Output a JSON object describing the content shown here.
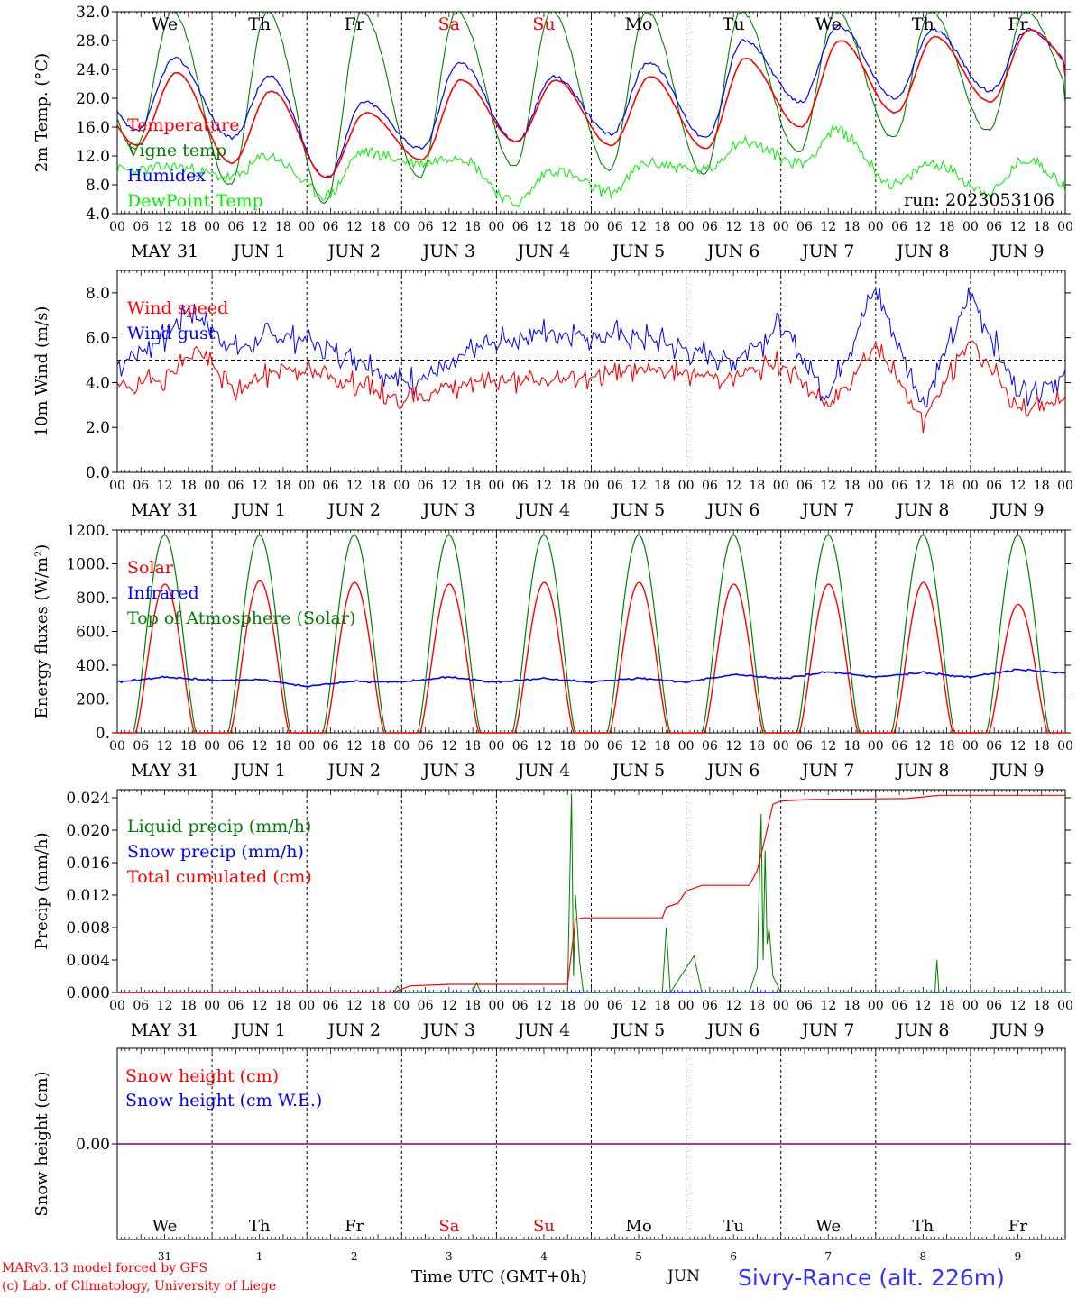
{
  "chart_data": [
    {
      "id": "temp",
      "type": "line",
      "ylabel": "2m Temp. (°C)",
      "ylim": [
        4,
        32
      ],
      "yticks": [
        "4.0",
        "8.0",
        "12.0",
        "16.0",
        "20.0",
        "24.0",
        "28.0",
        "32.0"
      ],
      "ytick_values": [
        4,
        8,
        12,
        16,
        20,
        24,
        28,
        32
      ],
      "run_label": "run: 2023053106",
      "day_names": [
        "We",
        "Th",
        "Fr",
        "Sa",
        "Su",
        "Mo",
        "Tu",
        "We",
        "Th",
        "Fr"
      ],
      "day_name_colors": [
        "#000000",
        "#000000",
        "#000000",
        "#ff0000",
        "#ff0000",
        "#000000",
        "#000000",
        "#000000",
        "#000000",
        "#000000"
      ],
      "series": [
        {
          "name": "Temperature",
          "color": "#ff0000",
          "mins": [
            13.5,
            11,
            9,
            11.5,
            14,
            13.5,
            13,
            16,
            18,
            19.5
          ],
          "maxs": [
            23.5,
            21,
            18,
            22.5,
            22.5,
            23,
            25.5,
            28,
            28.5,
            29.5
          ],
          "end": 23
        },
        {
          "name": "Vigne temp",
          "color": "#008000",
          "mins": [
            13,
            8,
            5.5,
            9,
            10.5,
            10,
            9.5,
            12.5,
            14.5,
            15.5
          ],
          "maxs": [
            32,
            32,
            32,
            32,
            32,
            32,
            32,
            32,
            32,
            32
          ],
          "end": 19
        },
        {
          "name": "Humidex",
          "color": "#0000ff",
          "mins": [
            15.5,
            14.5,
            9,
            13,
            14,
            15,
            14.5,
            19.5,
            20,
            21
          ],
          "maxs": [
            25.5,
            23,
            19.5,
            25,
            23,
            25,
            28,
            30,
            29.5,
            29.5
          ],
          "end": 23.5
        },
        {
          "name": "DewPoint Temp",
          "color": "#00ee00",
          "mins": [
            10,
            9,
            6.5,
            11,
            5.5,
            7,
            10,
            11,
            8,
            7
          ],
          "maxs": [
            10.5,
            12,
            12.5,
            12,
            10,
            11,
            14,
            15.5,
            11,
            11.5
          ],
          "end": 6.5
        }
      ]
    },
    {
      "id": "wind",
      "type": "line",
      "ylabel": "10m Wind (m/s)",
      "ylim": [
        0,
        9
      ],
      "yticks": [
        "0.0",
        "2.0",
        "4.0",
        "6.0",
        "8.0"
      ],
      "ytick_values": [
        0,
        2,
        4,
        6,
        8
      ],
      "reference_line": 5,
      "series": [
        {
          "name": "Wind speed",
          "color": "#ff0000",
          "x_hours": [
            0,
            12,
            20,
            30,
            42,
            60,
            72,
            84,
            90,
            108,
            132,
            156,
            168,
            180,
            192,
            204,
            216,
            228,
            240
          ],
          "values": [
            3.7,
            4.2,
            5.5,
            3.6,
            4.7,
            4.0,
            3.2,
            3.8,
            4.1,
            4.0,
            4.6,
            4.2,
            4.9,
            2.9,
            5.7,
            2.3,
            6.0,
            2.8,
            3.3
          ]
        },
        {
          "name": "Wind gust",
          "color": "#0000ff",
          "x_hours": [
            0,
            12,
            18,
            30,
            42,
            60,
            72,
            84,
            90,
            108,
            132,
            156,
            168,
            180,
            192,
            204,
            216,
            228,
            240
          ],
          "values": [
            4.8,
            6.0,
            7.3,
            5.5,
            6.2,
            5.2,
            4.0,
            4.6,
            5.5,
            6.3,
            6.0,
            5.0,
            6.5,
            3.4,
            8.2,
            3.0,
            8.0,
            3.5,
            4.3
          ]
        }
      ]
    },
    {
      "id": "energy",
      "type": "line",
      "ylabel": "Energy fluxes (W/m²)",
      "ylim": [
        0,
        1200
      ],
      "yticks": [
        "0.",
        "200.",
        "400.",
        "600.",
        "800.",
        "1000.",
        "1200."
      ],
      "ytick_values": [
        0,
        200,
        400,
        600,
        800,
        1000,
        1200
      ],
      "series": [
        {
          "name": "Solar",
          "color": "#ff0000",
          "peaks": [
            880,
            900,
            890,
            880,
            890,
            890,
            880,
            880,
            890,
            760
          ]
        },
        {
          "name": "Infrared",
          "color": "#0000ff",
          "x_hours": [
            0,
            12,
            24,
            36,
            48,
            60,
            72,
            84,
            96,
            108,
            120,
            132,
            144,
            156,
            168,
            180,
            192,
            204,
            216,
            228,
            240
          ],
          "values": [
            300,
            330,
            310,
            315,
            275,
            305,
            300,
            330,
            300,
            320,
            300,
            325,
            300,
            345,
            320,
            360,
            330,
            355,
            330,
            375,
            355
          ]
        },
        {
          "name": "Top of Atmosphere (Solar)",
          "color": "#008000",
          "peaks": [
            1170,
            1170,
            1170,
            1170,
            1170,
            1170,
            1170,
            1170,
            1170,
            1170
          ]
        }
      ]
    },
    {
      "id": "precip",
      "type": "line",
      "ylabel": "Precip (mm/h)",
      "ylim": [
        0,
        0.025
      ],
      "yticks": [
        "0.000",
        "0.004",
        "0.008",
        "0.012",
        "0.016",
        "0.020",
        "0.024"
      ],
      "ytick_values": [
        0,
        0.004,
        0.008,
        0.012,
        0.016,
        0.02,
        0.024
      ],
      "series": [
        {
          "name": "Liquid precip (mm/h)",
          "color": "#008000",
          "x_hours": [
            0,
            70,
            71,
            72,
            90,
            91,
            92,
            114,
            115,
            115.5,
            116,
            117,
            118,
            119,
            138,
            139,
            140,
            144,
            146,
            148,
            160,
            162,
            163,
            163.5,
            164,
            164.5,
            165,
            166,
            168,
            207,
            207.5,
            208,
            240
          ],
          "values": [
            0,
            0,
            0.0008,
            0,
            0,
            0.0012,
            0,
            0,
            0.0245,
            0.002,
            0.012,
            0.004,
            0,
            0,
            0,
            0.008,
            0,
            0.003,
            0.0045,
            0,
            0,
            0.003,
            0.022,
            0.004,
            0.0175,
            0.006,
            0.008,
            0.002,
            0,
            0,
            0.004,
            0,
            0
          ]
        },
        {
          "name": "Snow precip (mm/h)",
          "color": "#0000ff",
          "x_hours": [
            0,
            240
          ],
          "values": [
            0,
            0
          ]
        },
        {
          "name": "Total cumulated (cm)",
          "color": "#ff0000",
          "x_hours": [
            0,
            70,
            74,
            84,
            114,
            115,
            116,
            118,
            138,
            139,
            142,
            144,
            148,
            160,
            162,
            164,
            166,
            168,
            176,
            200,
            208,
            240
          ],
          "values": [
            0,
            0,
            0.0008,
            0.001,
            0.001,
            0.005,
            0.009,
            0.0092,
            0.0092,
            0.0105,
            0.011,
            0.0125,
            0.0132,
            0.0132,
            0.015,
            0.019,
            0.0232,
            0.0236,
            0.0238,
            0.0239,
            0.0243,
            0.0243
          ]
        }
      ]
    },
    {
      "id": "snow",
      "type": "line",
      "ylabel": "Snow height (cm)",
      "ylim": [
        -1,
        1
      ],
      "yticks": [
        "0.00"
      ],
      "ytick_values": [
        0
      ],
      "series": [
        {
          "name": "Snow height (cm)",
          "color": "#ff0000",
          "values": [
            0,
            0
          ]
        },
        {
          "name": "Snow height (cm W.E.)",
          "color": "#0000ff",
          "values": [
            0,
            0
          ]
        }
      ]
    }
  ],
  "x_axis": {
    "hour_labels": [
      "00",
      "06",
      "12",
      "18"
    ],
    "date_labels": [
      "MAY 31",
      "JUN  1",
      "JUN  2",
      "JUN  3",
      "JUN  4",
      "JUN  5",
      "JUN  6",
      "JUN  7",
      "JUN  8",
      "JUN  9"
    ],
    "bottom_day_numbers": [
      "31",
      "1",
      "2",
      "3",
      "4",
      "5",
      "6",
      "7",
      "8",
      "9"
    ],
    "title": "Time UTC (GMT+0h)",
    "month": "JUN"
  },
  "footer": {
    "credit_line1": "MARv3.13 model forced by GFS",
    "credit_line2": "(c) Lab. of Climatology, University of Liege",
    "station": "Sivry-Rance (alt. 226m)"
  },
  "colors": {
    "red": "#ff0000",
    "green": "#008000",
    "blue": "#0000ff",
    "lightgreen": "#00ee00",
    "purple": "#800080"
  }
}
